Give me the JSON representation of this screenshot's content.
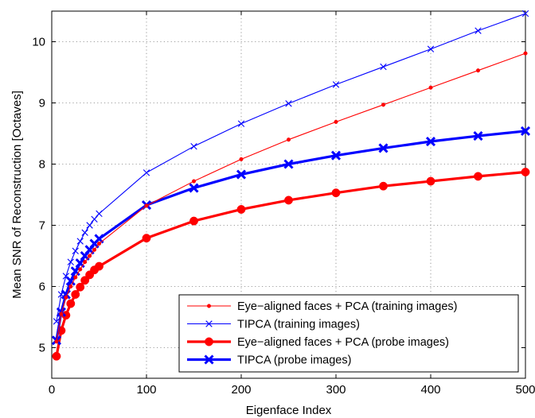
{
  "chart_data": {
    "type": "line",
    "xlabel": "Eigenface Index",
    "ylabel": "Mean SNR of Reconstruction [Octaves]",
    "xlim": [
      0,
      500
    ],
    "ylim": [
      4.5,
      10.5
    ],
    "xticks": [
      0,
      100,
      200,
      300,
      400,
      500
    ],
    "yticks": [
      5,
      6,
      7,
      8,
      9,
      10
    ],
    "grid": true,
    "legend_position": "bottom-right",
    "series": [
      {
        "name": "Eye−aligned faces + PCA (training images)",
        "color": "#ff0000",
        "style": "thin",
        "marker": "dot",
        "x": [
          5,
          10,
          15,
          20,
          25,
          30,
          35,
          40,
          45,
          50,
          100,
          150,
          200,
          250,
          300,
          350,
          400,
          450,
          500
        ],
        "y": [
          5.1,
          5.55,
          5.82,
          6.0,
          6.15,
          6.28,
          6.4,
          6.5,
          6.6,
          6.7,
          7.32,
          7.72,
          8.08,
          8.4,
          8.69,
          8.97,
          9.25,
          9.53,
          9.81
        ]
      },
      {
        "name": "TIPCA (training images)",
        "color": "#0000ff",
        "style": "thin",
        "marker": "x",
        "x": [
          5,
          10,
          15,
          20,
          25,
          30,
          35,
          40,
          45,
          50,
          100,
          150,
          200,
          250,
          300,
          350,
          400,
          450,
          500
        ],
        "y": [
          5.43,
          5.87,
          6.17,
          6.4,
          6.58,
          6.74,
          6.88,
          7.0,
          7.1,
          7.19,
          7.86,
          8.29,
          8.66,
          8.99,
          9.3,
          9.59,
          9.88,
          10.18,
          10.46
        ]
      },
      {
        "name": "Eye−aligned faces + PCA (probe images)",
        "color": "#ff0000",
        "style": "thick",
        "marker": "dot",
        "x": [
          5,
          10,
          15,
          20,
          25,
          30,
          35,
          40,
          45,
          50,
          100,
          150,
          200,
          250,
          300,
          350,
          400,
          450,
          500
        ],
        "y": [
          4.86,
          5.28,
          5.53,
          5.72,
          5.87,
          5.99,
          6.1,
          6.19,
          6.27,
          6.33,
          6.79,
          7.07,
          7.26,
          7.41,
          7.53,
          7.64,
          7.72,
          7.8,
          7.87
        ]
      },
      {
        "name": "TIPCA (probe images)",
        "color": "#0000ff",
        "style": "thick",
        "marker": "x",
        "x": [
          5,
          10,
          15,
          20,
          25,
          30,
          35,
          40,
          45,
          50,
          100,
          150,
          200,
          250,
          300,
          350,
          400,
          450,
          500
        ],
        "y": [
          5.12,
          5.58,
          5.87,
          6.09,
          6.25,
          6.38,
          6.5,
          6.6,
          6.7,
          6.78,
          7.33,
          7.61,
          7.83,
          8.0,
          8.14,
          8.26,
          8.37,
          8.46,
          8.54
        ]
      }
    ]
  }
}
